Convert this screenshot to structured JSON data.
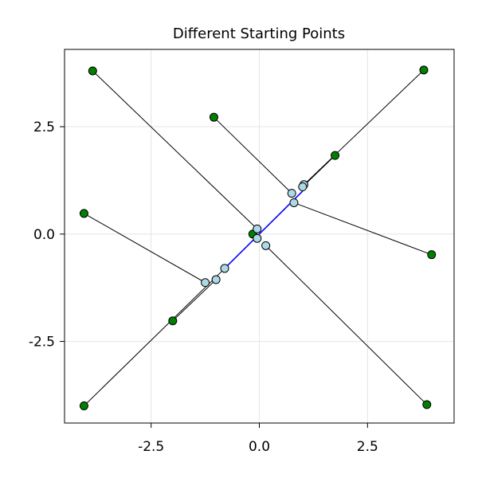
{
  "chart_data": {
    "type": "scatter",
    "title": "Different Starting Points",
    "xlabel": "",
    "ylabel": "",
    "xlim": [
      -4.5,
      4.5
    ],
    "ylim": [
      -4.4,
      4.3
    ],
    "x_ticks": [
      -2.5,
      0.0,
      2.5
    ],
    "y_ticks": [
      -2.5,
      0.0,
      2.5
    ],
    "x_tick_labels": [
      "-2.5",
      "0.0",
      "2.5"
    ],
    "y_tick_labels": [
      "-2.5",
      "0.0",
      "2.5"
    ],
    "grid": true,
    "colors": {
      "start": "#008000",
      "end": "#add8e6",
      "path": "#000000",
      "diagonal": "#0000ff",
      "grid": "#e5e5e5",
      "frame": "#000000",
      "marker_edge": "#000000"
    },
    "diagonal_segment": [
      [
        -0.75,
        -0.75
      ],
      [
        1.0,
        1.0
      ]
    ],
    "paths": [
      {
        "start": [
          -3.85,
          3.8
        ],
        "end": [
          -0.05,
          0.12
        ]
      },
      {
        "start": [
          -1.05,
          2.72
        ],
        "end": [
          0.75,
          0.95
        ]
      },
      {
        "start": [
          3.8,
          3.82
        ],
        "end": [
          1.03,
          1.15
        ]
      },
      {
        "start": [
          1.75,
          1.83
        ],
        "end": [
          1.0,
          1.1
        ]
      },
      {
        "start": [
          3.98,
          -0.48
        ],
        "end": [
          0.8,
          0.73
        ]
      },
      {
        "start": [
          -4.05,
          0.48
        ],
        "end": [
          -1.25,
          -1.13
        ]
      },
      {
        "start": [
          -2.0,
          -2.02
        ],
        "end": [
          -1.0,
          -1.06
        ]
      },
      {
        "start": [
          -4.05,
          -4.0
        ],
        "end": [
          -0.8,
          -0.8
        ]
      },
      {
        "start": [
          3.87,
          -3.97
        ],
        "end": [
          0.15,
          -0.27
        ]
      },
      {
        "start": [
          -0.15,
          0.0
        ],
        "end": [
          -0.05,
          -0.1
        ]
      }
    ]
  }
}
